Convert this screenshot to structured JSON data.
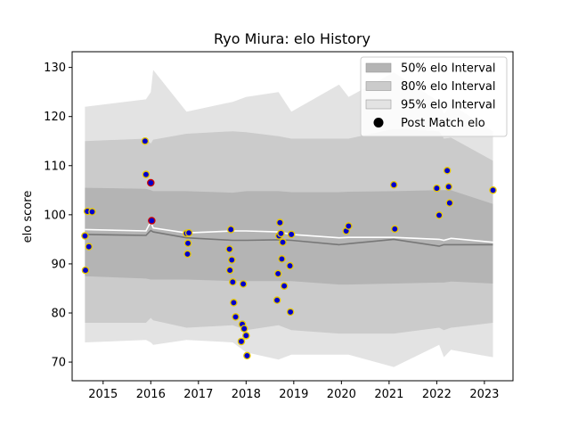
{
  "chart_data": {
    "type": "scatter",
    "title": "Ryo Miura: elo History",
    "xlabel": "",
    "ylabel": "elo score",
    "xlim": [
      2014.35,
      2023.6
    ],
    "ylim": [
      66.2,
      133.2
    ],
    "xticks": [
      2015,
      2016,
      2017,
      2018,
      2019,
      2020,
      2021,
      2022,
      2023
    ],
    "yticks": [
      70,
      80,
      90,
      100,
      110,
      120,
      130
    ],
    "grid": false,
    "legend_position": "top-right",
    "legend": [
      {
        "label": "50% elo Interval",
        "kind": "patch",
        "color": "#b4b4b4"
      },
      {
        "label": "80% elo Interval",
        "kind": "patch",
        "color": "#cbcbcb"
      },
      {
        "label": "95% elo Interval",
        "kind": "patch",
        "color": "#e3e3e3"
      },
      {
        "label": "Post Match elo",
        "kind": "marker",
        "color": "#000000"
      }
    ],
    "band_x": [
      2014.62,
      2015.9,
      2016.0,
      2016.05,
      2016.75,
      2017.72,
      2018.0,
      2018.68,
      2018.95,
      2019.95,
      2020.15,
      2021.1,
      2022.05,
      2022.15,
      2022.3,
      2023.18
    ],
    "bands": [
      {
        "name": "95% elo Interval",
        "color": "#e3e3e3",
        "upper": [
          122.0,
          123.5,
          125.0,
          129.5,
          121.0,
          123.0,
          124.0,
          125.0,
          121.0,
          126.5,
          124.0,
          129.0,
          123.0,
          120.5,
          122.5,
          117.0
        ],
        "lower": [
          74.0,
          74.5,
          74.0,
          73.5,
          74.5,
          74.0,
          72.0,
          70.5,
          71.5,
          71.5,
          71.5,
          69.0,
          73.5,
          71.0,
          72.5,
          71.0
        ]
      },
      {
        "name": "80% elo Interval",
        "color": "#cbcbcb",
        "upper": [
          115.0,
          115.5,
          114.5,
          115.3,
          116.5,
          117.0,
          116.8,
          116.0,
          115.5,
          115.5,
          115.5,
          117.5,
          117.0,
          115.5,
          115.7,
          111.0
        ],
        "lower": [
          78.0,
          78.0,
          79.0,
          78.5,
          77.0,
          77.5,
          76.5,
          77.5,
          76.5,
          75.8,
          75.8,
          75.8,
          77.0,
          76.5,
          77.0,
          78.0
        ]
      },
      {
        "name": "50% elo Interval",
        "color": "#b4b4b4",
        "upper": [
          105.5,
          105.3,
          105.0,
          104.8,
          104.8,
          104.5,
          104.8,
          104.8,
          104.6,
          104.6,
          104.7,
          104.8,
          105.0,
          105.0,
          105.0,
          102.2
        ],
        "lower": [
          87.5,
          87.0,
          86.8,
          86.8,
          86.8,
          86.5,
          86.5,
          86.5,
          86.5,
          85.8,
          85.8,
          86.0,
          86.2,
          86.2,
          86.4,
          86.0
        ]
      }
    ],
    "series": [
      {
        "name": "",
        "color": "#ffffff",
        "x": [
          2014.62,
          2015.9,
          2016.0,
          2016.05,
          2016.75,
          2017.72,
          2018.0,
          2018.68,
          2018.95,
          2019.95,
          2020.15,
          2021.1,
          2022.05,
          2022.15,
          2022.3,
          2023.18
        ],
        "y": [
          97.0,
          96.7,
          98.6,
          97.3,
          96.3,
          96.7,
          96.7,
          96.5,
          96.0,
          95.3,
          95.4,
          95.4,
          95.0,
          94.8,
          95.2,
          94.4
        ]
      },
      {
        "name": "",
        "color": "#777777",
        "x": [
          2014.62,
          2015.9,
          2016.0,
          2016.05,
          2016.75,
          2017.72,
          2018.0,
          2018.68,
          2018.95,
          2019.95,
          2020.15,
          2021.1,
          2022.05,
          2022.15,
          2022.3,
          2023.18
        ],
        "y": [
          96.0,
          95.8,
          96.8,
          96.5,
          95.3,
          94.8,
          94.8,
          94.9,
          94.8,
          93.9,
          94.1,
          95.0,
          93.6,
          93.9,
          93.9,
          93.9
        ]
      }
    ],
    "points": [
      {
        "x": 2014.62,
        "y": 95.7
      },
      {
        "x": 2014.63,
        "y": 88.7
      },
      {
        "x": 2014.67,
        "y": 100.7
      },
      {
        "x": 2014.7,
        "y": 93.5
      },
      {
        "x": 2014.77,
        "y": 100.6
      },
      {
        "x": 2015.88,
        "y": 115.0
      },
      {
        "x": 2015.9,
        "y": 108.2
      },
      {
        "x": 2016.0,
        "y": 106.5,
        "edge": "#cc0000"
      },
      {
        "x": 2016.02,
        "y": 98.8,
        "edge": "#cc0000"
      },
      {
        "x": 2016.75,
        "y": 96.2
      },
      {
        "x": 2016.77,
        "y": 92.0
      },
      {
        "x": 2016.78,
        "y": 94.2
      },
      {
        "x": 2016.8,
        "y": 96.3
      },
      {
        "x": 2017.65,
        "y": 93.0
      },
      {
        "x": 2017.66,
        "y": 88.7
      },
      {
        "x": 2017.68,
        "y": 97.0
      },
      {
        "x": 2017.7,
        "y": 90.8
      },
      {
        "x": 2017.72,
        "y": 86.3
      },
      {
        "x": 2017.74,
        "y": 82.1
      },
      {
        "x": 2017.78,
        "y": 79.2
      },
      {
        "x": 2017.9,
        "y": 74.2
      },
      {
        "x": 2017.92,
        "y": 77.7
      },
      {
        "x": 2017.94,
        "y": 85.9
      },
      {
        "x": 2017.96,
        "y": 76.8
      },
      {
        "x": 2018.0,
        "y": 75.4
      },
      {
        "x": 2018.02,
        "y": 71.3
      },
      {
        "x": 2018.65,
        "y": 82.6
      },
      {
        "x": 2018.67,
        "y": 88.0
      },
      {
        "x": 2018.69,
        "y": 95.7
      },
      {
        "x": 2018.71,
        "y": 98.4
      },
      {
        "x": 2018.73,
        "y": 96.2
      },
      {
        "x": 2018.75,
        "y": 91.0
      },
      {
        "x": 2018.77,
        "y": 94.4
      },
      {
        "x": 2018.8,
        "y": 85.5
      },
      {
        "x": 2018.92,
        "y": 89.6
      },
      {
        "x": 2018.93,
        "y": 80.2
      },
      {
        "x": 2018.95,
        "y": 96.0
      },
      {
        "x": 2020.1,
        "y": 96.7
      },
      {
        "x": 2020.15,
        "y": 97.7
      },
      {
        "x": 2021.1,
        "y": 106.1
      },
      {
        "x": 2021.12,
        "y": 97.1
      },
      {
        "x": 2022.0,
        "y": 105.4
      },
      {
        "x": 2022.05,
        "y": 99.9
      },
      {
        "x": 2022.22,
        "y": 109.0
      },
      {
        "x": 2022.25,
        "y": 105.7
      },
      {
        "x": 2022.27,
        "y": 102.4
      },
      {
        "x": 2023.18,
        "y": 105.0
      }
    ]
  }
}
